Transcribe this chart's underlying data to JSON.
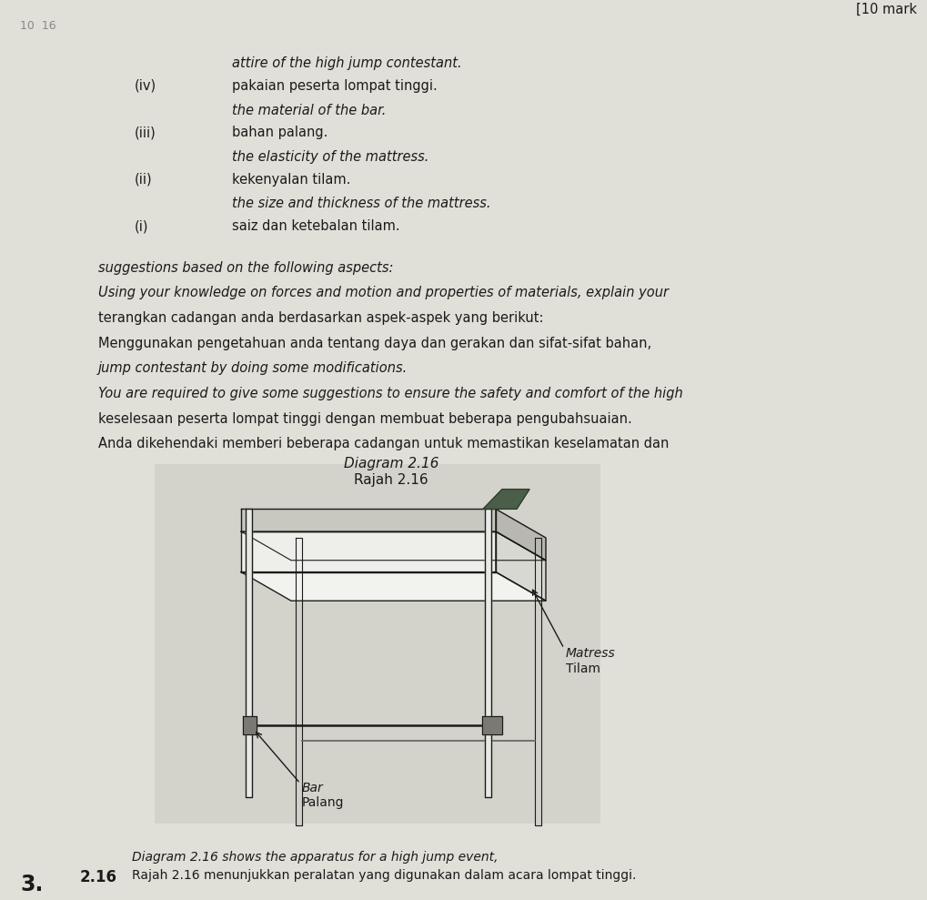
{
  "page_bg": "#e0e0d8",
  "question_number": "3.",
  "question_ref": "2.16",
  "header_line1": "Rajah 2.16 menunjukkan peralatan yang digunakan dalam acara lompat tinggi.",
  "header_line2": "Diagram 2.16 shows the apparatus for a high jump event,",
  "diagram_caption1": "Rajah 2.16",
  "diagram_caption2": "Diagram 2.16",
  "label_palang": "Palang",
  "label_bar": "Bar",
  "label_tilam": "Tilam",
  "label_matress": "Matress",
  "body_lines": [
    [
      "Anda dikehendaki memberi beberapa cadangan untuk memastikan keselamatan dan",
      false
    ],
    [
      "keselesaan peserta lompat tinggi dengan membuat beberapa pengubahsuaian.",
      false
    ],
    [
      "You are required to give some suggestions to ensure the safety and comfort of the high",
      true
    ],
    [
      "jump contestant by doing some modifications.",
      true
    ],
    [
      "Menggunakan pengetahuan anda tentang daya dan gerakan dan sifat-sifat bahan,",
      false
    ],
    [
      "terangkan cadangan anda berdasarkan aspek-aspek yang berikut:",
      false
    ],
    [
      "Using your knowledge on forces and motion and properties of materials, explain your",
      true
    ],
    [
      "suggestions based on the following aspects:",
      true
    ]
  ],
  "items": [
    [
      "(i)",
      "saiz dan ketebalan tilam.",
      "the size and thickness of the mattress."
    ],
    [
      "(ii)",
      "kekenyalan tilam.",
      "the elasticity of the mattress."
    ],
    [
      "(iii)",
      "bahan palang.",
      "the material of the bar."
    ],
    [
      "(iv)",
      "pakaian peserta lompat tinggi.",
      "attire of the high jump contestant."
    ]
  ],
  "marks_text": "[10 mark",
  "watermark_text": "10  16",
  "lc": "#1a1a1a",
  "diagram_bg": "#d0d0c8",
  "mattress_top_color": "#f2f2ee",
  "mattress_front_color": "#eeeeea",
  "mattress_right_color": "#d8d8d2",
  "mattress_base_front": "#c8c8c0",
  "mattress_base_right": "#b8b8b0",
  "pole_fill": "#e8e8e4",
  "foot_color": "#4a5e4a"
}
